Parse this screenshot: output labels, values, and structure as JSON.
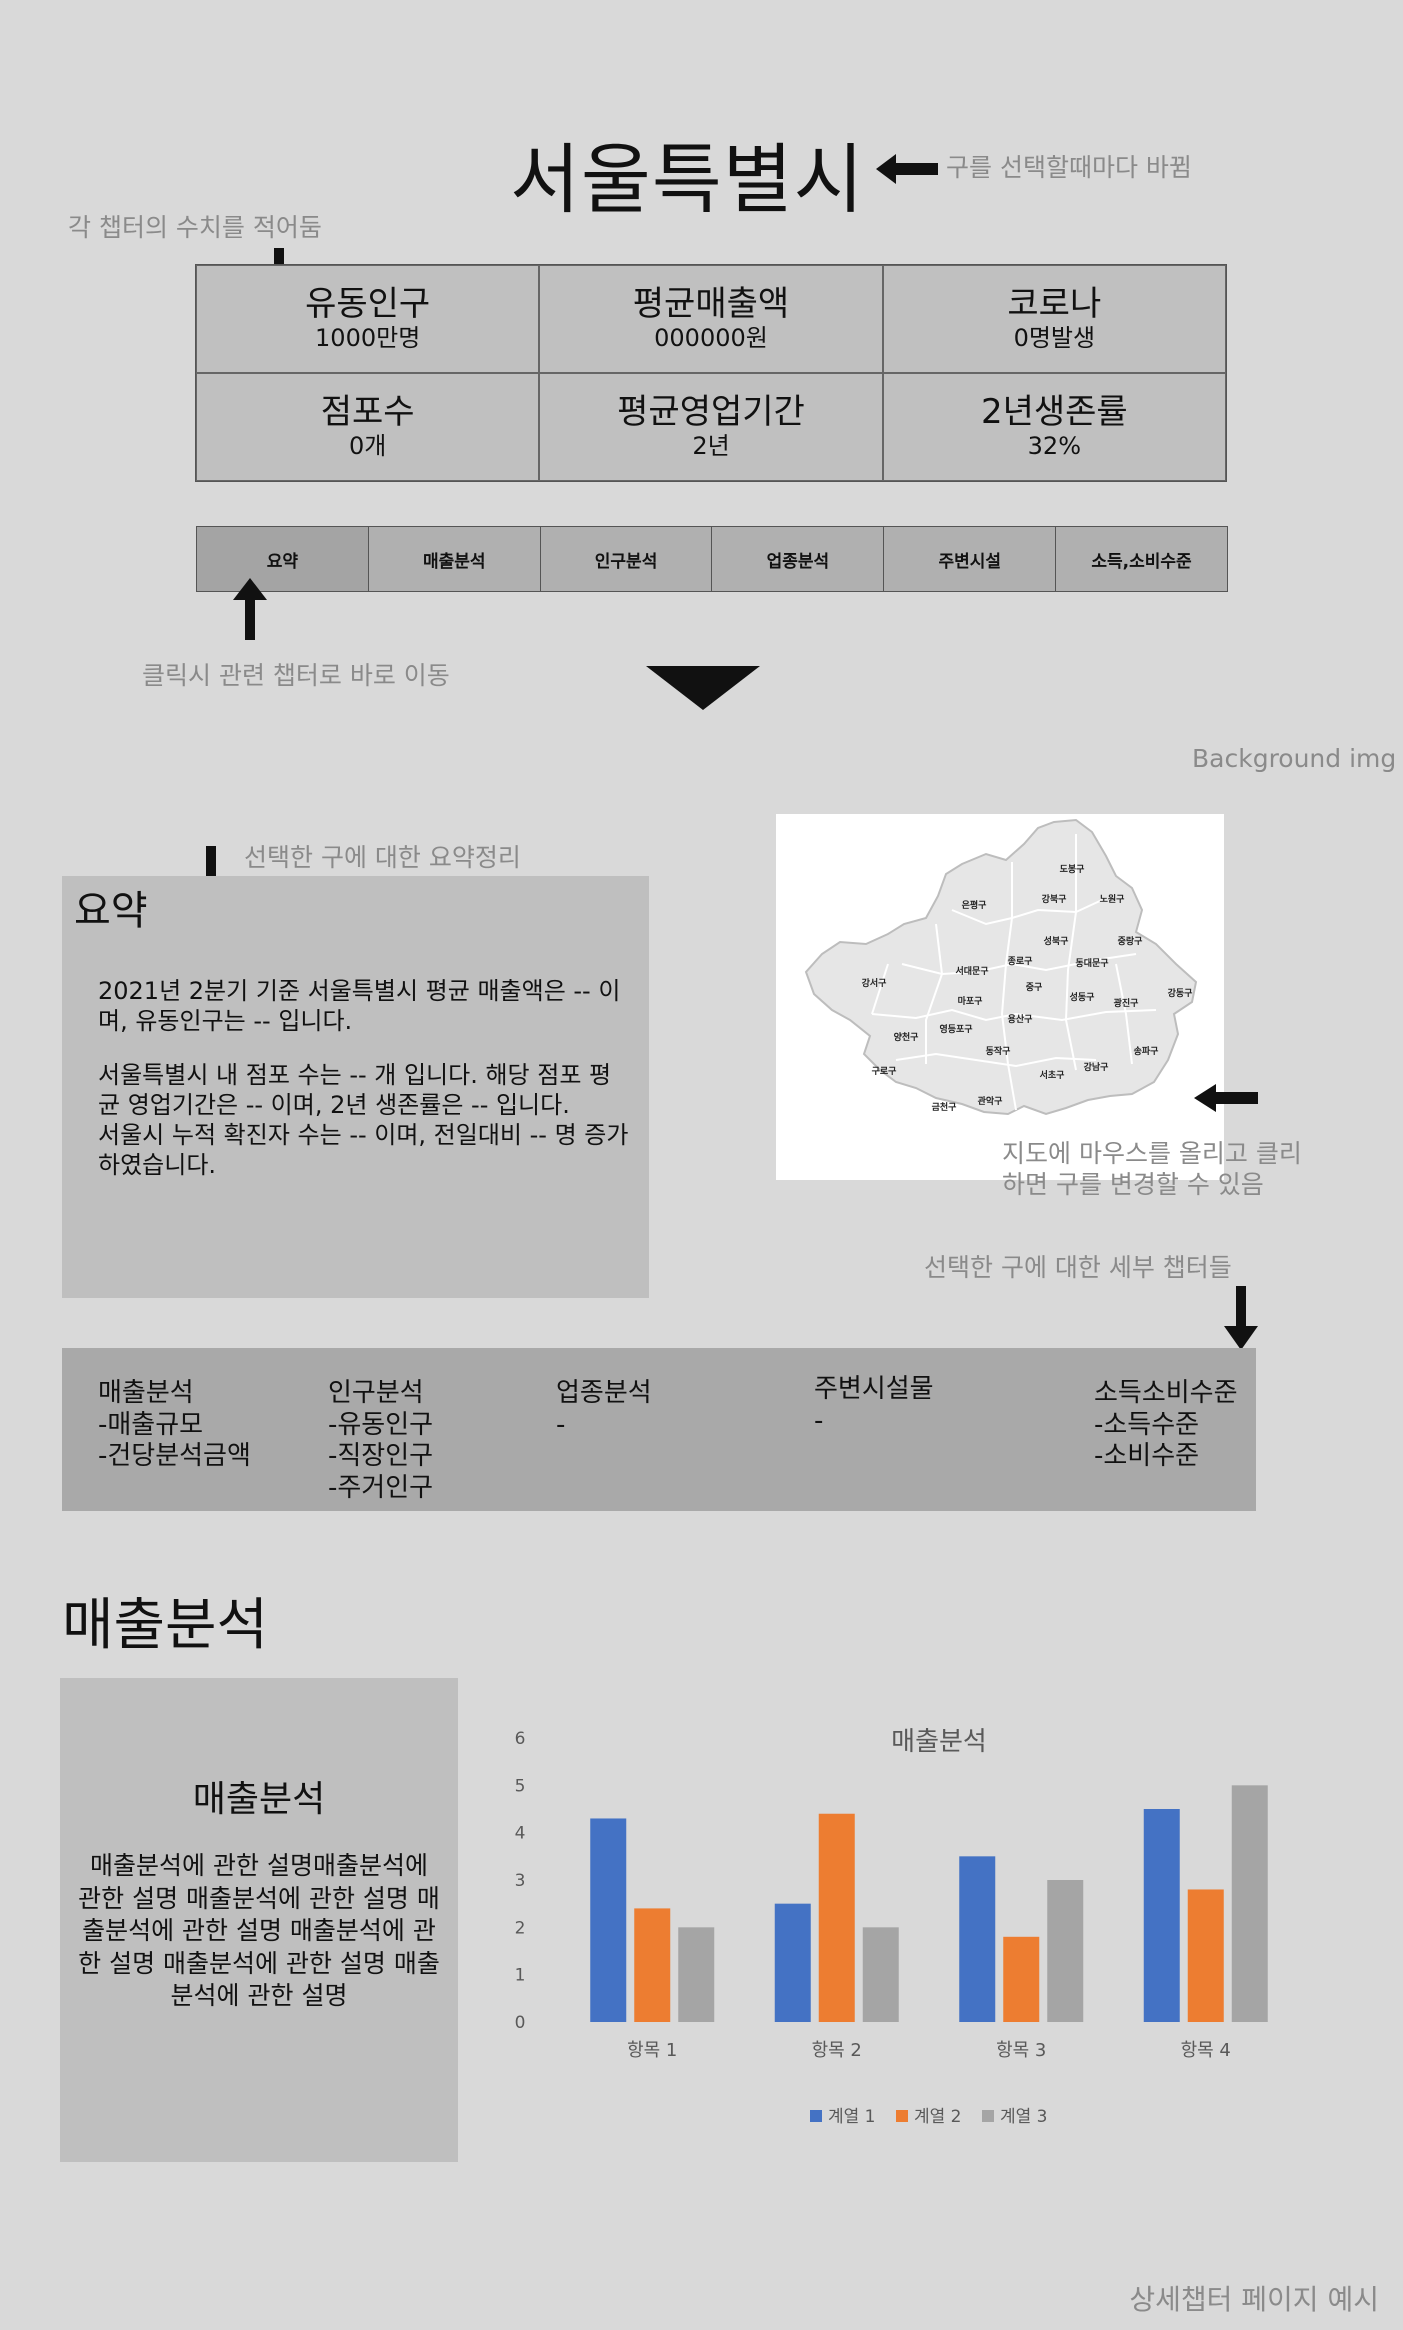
{
  "header": {
    "title": "서울특별시",
    "title_note": "구를 선택할때마다 바뀜",
    "stats_note": "각 챕터의 수치를 적어둠"
  },
  "stats": [
    {
      "label": "유동인구",
      "value": "1000만명"
    },
    {
      "label": "평균매출액",
      "value": "000000원"
    },
    {
      "label": "코로나",
      "value": "0명발생"
    },
    {
      "label": "점포수",
      "value": "0개"
    },
    {
      "label": "평균영업기간",
      "value": "2년"
    },
    {
      "label": "2년생존률",
      "value": "32%"
    }
  ],
  "tabs": [
    {
      "label": "요약"
    },
    {
      "label": "매출분석"
    },
    {
      "label": "인구분석"
    },
    {
      "label": "업종분석"
    },
    {
      "label": "주변시설"
    },
    {
      "label": "소득,소비수준"
    }
  ],
  "tabs_note": "클릭시 관련 챕터로 바로 이동",
  "background_note": "Background img",
  "summary": {
    "note": "선택한 구에 대한 요약정리",
    "heading": "요약",
    "p1": "2021년 2분기 기준 서울특별시 평균 매출액은 -- 이며, 유동인구는 -- 입니다.",
    "p2": "서울특별시 내 점포 수는 -- 개 입니다. 해당 점포 평균 영업기간은 -- 이며, 2년 생존률은 -- 입니다.",
    "p3": "서울시 누적 확진자 수는 -- 이며, 전일대비 -- 명 증가하였습니다."
  },
  "map": {
    "note_line1": "지도에 마우스를 올리고 클리",
    "note_line2": "하면 구를 변경할 수 있음",
    "districts": [
      "도봉구",
      "강북구",
      "노원구",
      "은평구",
      "성북구",
      "중랑구",
      "종로구",
      "동대문구",
      "서대문구",
      "중구",
      "강서구",
      "마포구",
      "성동구",
      "광진구",
      "강동구",
      "양천구",
      "영등포구",
      "용산구",
      "송파구",
      "구로구",
      "동작구",
      "서초구",
      "강남구",
      "금천구",
      "관악구"
    ]
  },
  "chapters": {
    "note": "선택한 구에 대한 세부 챕터들",
    "items": [
      {
        "title": "매출분석",
        "lines": [
          "-매출규모",
          "-건당분석금액"
        ]
      },
      {
        "title": "인구분석",
        "lines": [
          "-유동인구",
          "-직장인구",
          "-주거인구"
        ]
      },
      {
        "title": "업종분석",
        "lines": [
          "-"
        ]
      },
      {
        "title": "주변시설물",
        "lines": [
          "-"
        ]
      },
      {
        "title": "소득소비수준",
        "lines": [
          "-소득수준",
          "-소비수준"
        ]
      }
    ]
  },
  "sales": {
    "heading": "매출분석",
    "desc_title": "매출분석",
    "desc_body": "매출분석에 관한 설명매출분석에 관한 설명 매출분석에 관한 설명 매출분석에 관한 설명 매출분석에 관한 설명 매출분석에 관한 설명 매출분석에 관한 설명"
  },
  "footer_note": "상세챕터 페이지 예시",
  "chart_data": {
    "type": "bar",
    "title": "매출분석",
    "categories": [
      "항목 1",
      "항목 2",
      "항목 3",
      "항목 4"
    ],
    "series": [
      {
        "name": "계열 1",
        "values": [
          4.3,
          2.5,
          3.5,
          4.5
        ],
        "color": "#4472c4"
      },
      {
        "name": "계열 2",
        "values": [
          2.4,
          4.4,
          1.8,
          2.8
        ],
        "color": "#ed7d31"
      },
      {
        "name": "계열 3",
        "values": [
          2,
          2,
          3,
          5
        ],
        "color": "#a5a5a5"
      }
    ],
    "ylim": [
      0,
      6
    ],
    "yticks": [
      "0",
      "1",
      "2",
      "3",
      "4",
      "5",
      "6"
    ],
    "grid": false,
    "legend": "bottom"
  }
}
